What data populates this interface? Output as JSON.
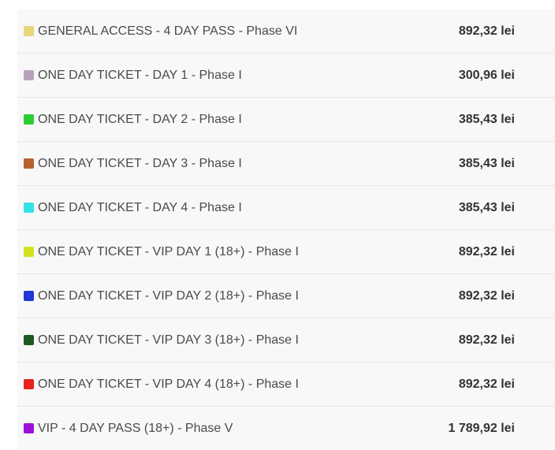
{
  "tickets": [
    {
      "name": "GENERAL ACCESS - 4 DAY PASS - Phase VI",
      "price": "892,32 lei",
      "color": "#e5d77a"
    },
    {
      "name": "ONE DAY TICKET - DAY 1 - Phase I",
      "price": "300,96 lei",
      "color": "#b8a2bb"
    },
    {
      "name": "ONE DAY TICKET - DAY 2 - Phase I",
      "price": "385,43 lei",
      "color": "#2dcc35"
    },
    {
      "name": "ONE DAY TICKET - DAY 3 - Phase I",
      "price": "385,43 lei",
      "color": "#b8622e"
    },
    {
      "name": "ONE DAY TICKET - DAY 4 - Phase I",
      "price": "385,43 lei",
      "color": "#35e0e6"
    },
    {
      "name": "ONE DAY TICKET - VIP DAY 1 (18+) - Phase I",
      "price": "892,32 lei",
      "color": "#d2e21f"
    },
    {
      "name": "ONE DAY TICKET - VIP DAY 2 (18+) - Phase I",
      "price": "892,32 lei",
      "color": "#2236d6"
    },
    {
      "name": "ONE DAY TICKET - VIP DAY 3 (18+) - Phase I",
      "price": "892,32 lei",
      "color": "#1e5a22"
    },
    {
      "name": "ONE DAY TICKET - VIP DAY 4 (18+) - Phase I",
      "price": "892,32 lei",
      "color": "#e8221c"
    },
    {
      "name": "VIP - 4 DAY PASS (18+) - Phase V",
      "price": "1 789,92 lei",
      "color": "#9e11d8"
    }
  ]
}
